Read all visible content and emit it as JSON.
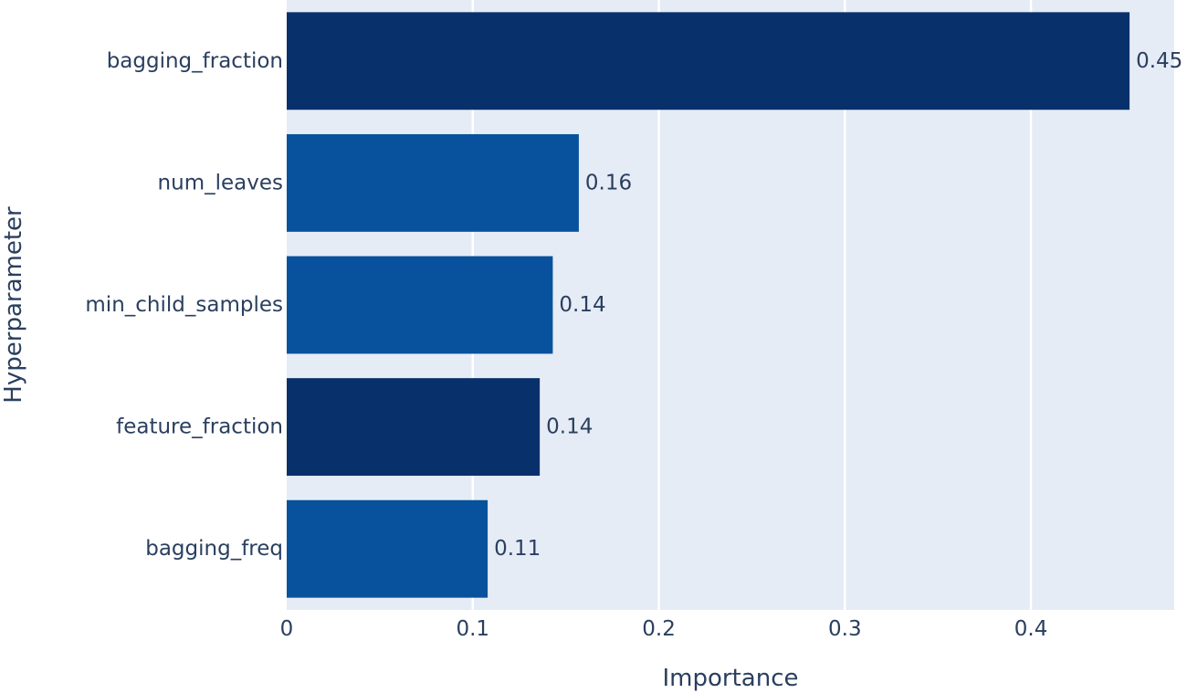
{
  "chart_data": {
    "type": "bar",
    "orientation": "horizontal",
    "categories": [
      "bagging_fraction",
      "num_leaves",
      "min_child_samples",
      "feature_fraction",
      "bagging_freq"
    ],
    "values": [
      0.453,
      0.157,
      0.143,
      0.136,
      0.108
    ],
    "data_labels": [
      "0.45",
      "0.16",
      "0.14",
      "0.14",
      "0.11"
    ],
    "bar_colors": [
      "#08306b",
      "#08519c",
      "#08519c",
      "#08306b",
      "#08519c"
    ],
    "xlabel": "Importance",
    "ylabel": "Hyperparameter",
    "xlim": [
      0,
      0.477
    ],
    "x_ticks": [
      0,
      0.1,
      0.2,
      0.3,
      0.4
    ],
    "x_tick_labels": [
      "0",
      "0.1",
      "0.2",
      "0.3",
      "0.4"
    ],
    "grid": true,
    "plot_background": "#e5ecf6",
    "text_color": "#2a3f5f"
  }
}
